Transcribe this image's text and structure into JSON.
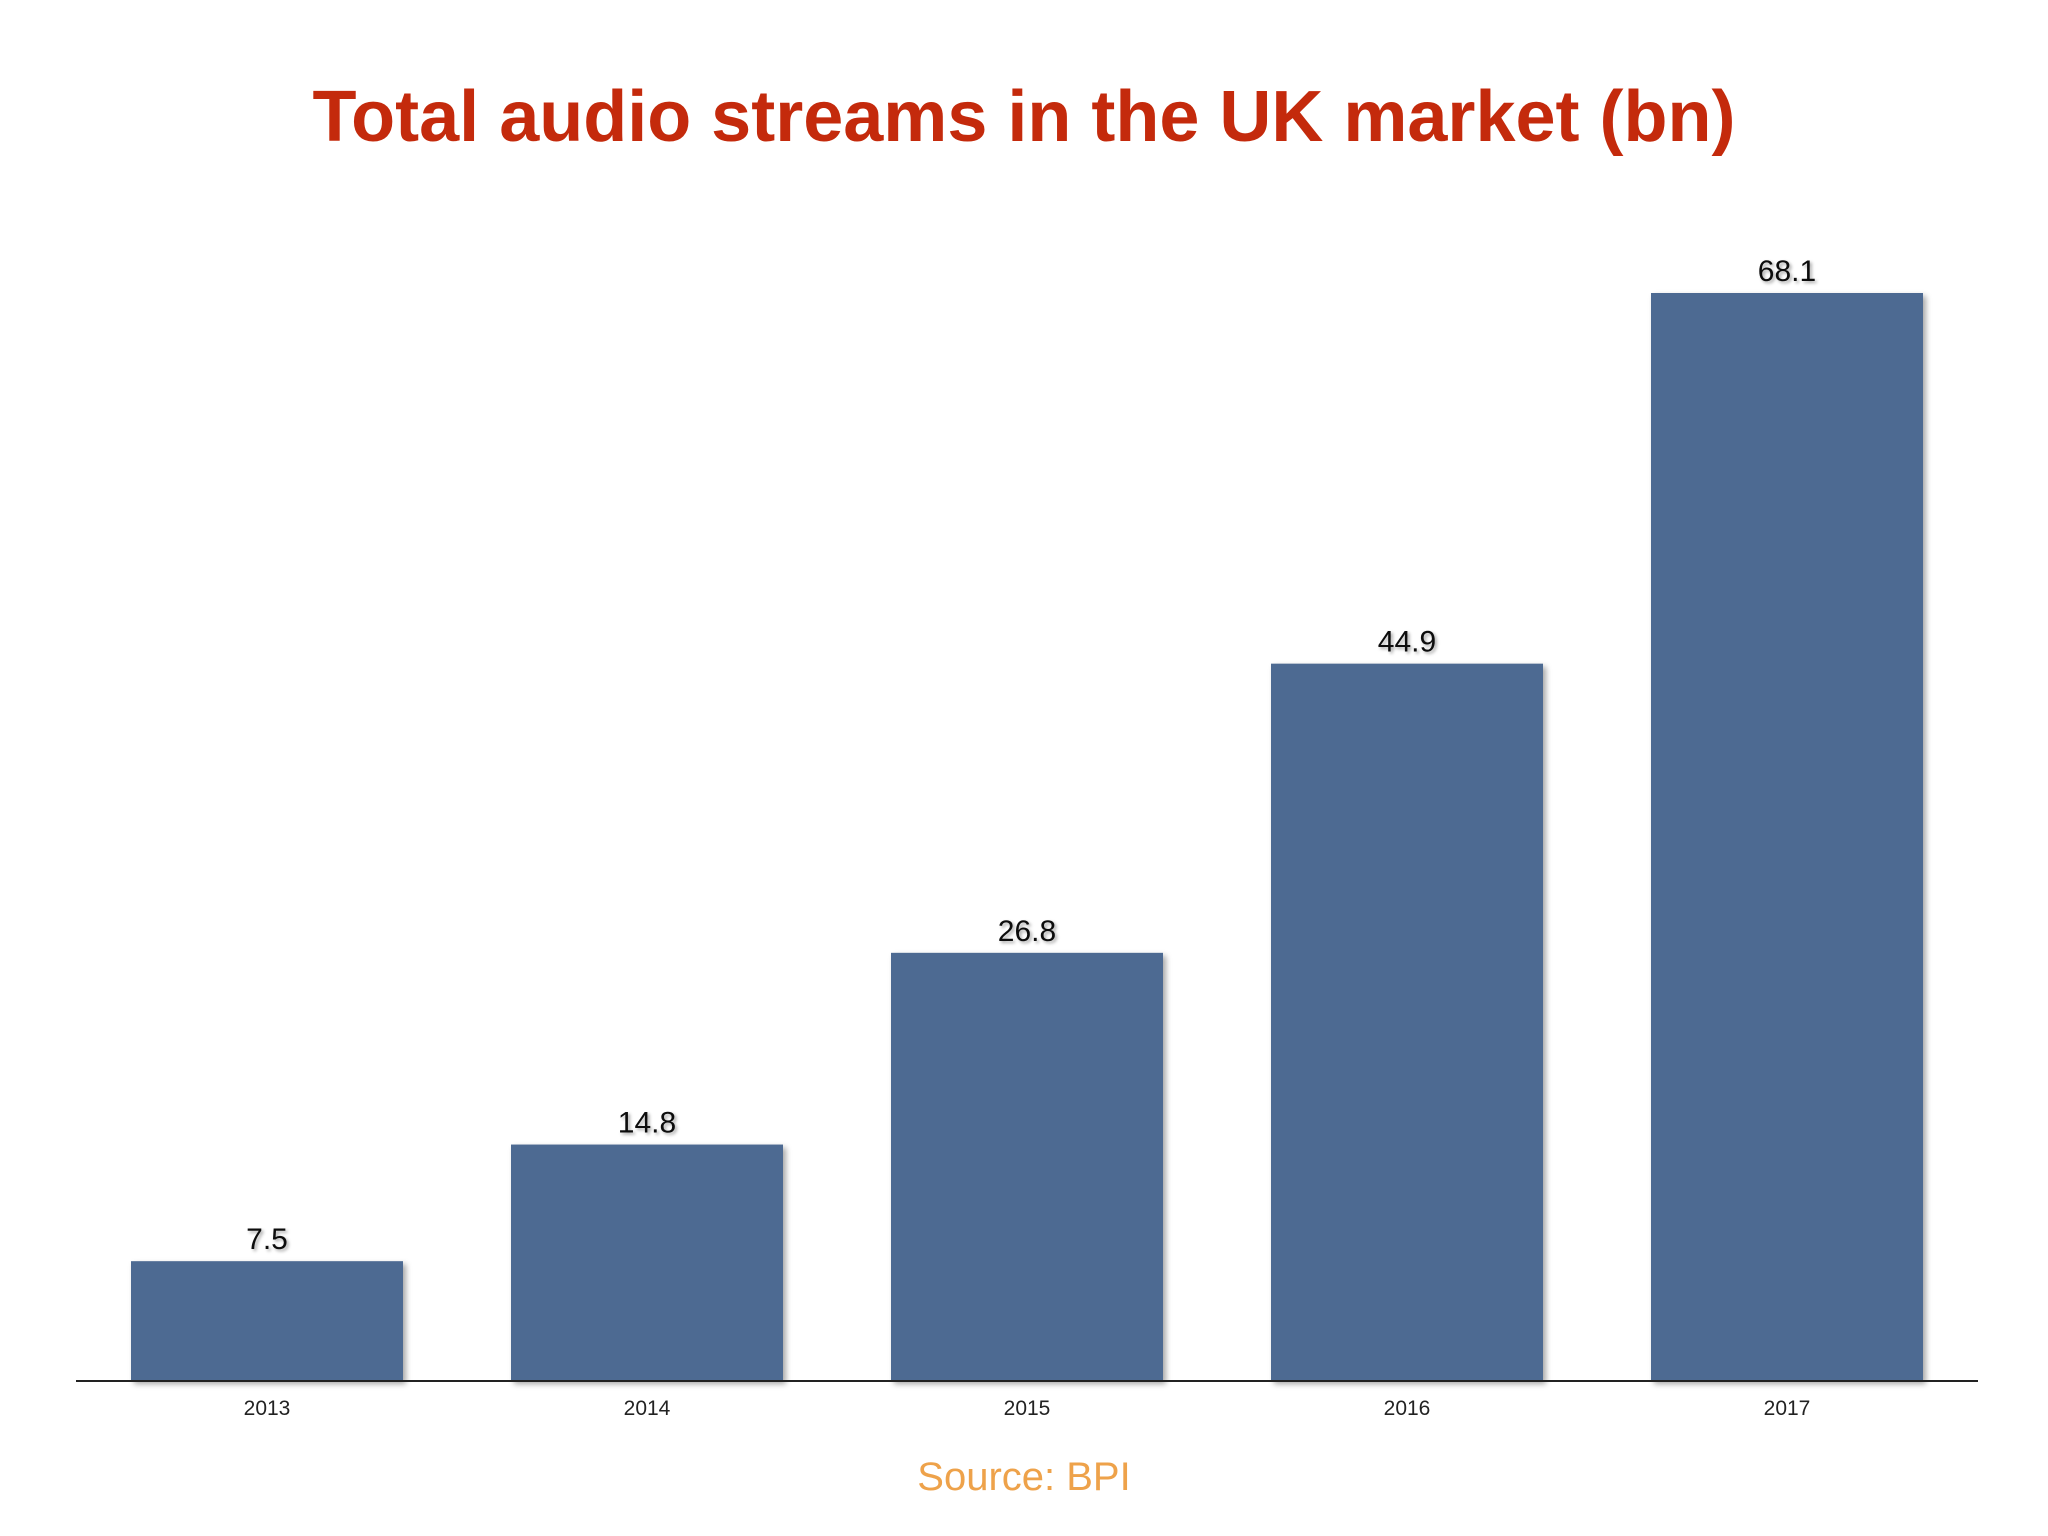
{
  "colors": {
    "title": "#c42a0c",
    "bar": "#4d6a92",
    "source": "#eea24a",
    "axis": "#222222"
  },
  "chart_data": {
    "type": "bar",
    "title": "Total audio streams in the UK market (bn)",
    "categories": [
      "2013",
      "2014",
      "2015",
      "2016",
      "2017"
    ],
    "values": [
      7.5,
      14.8,
      26.8,
      44.9,
      68.1
    ],
    "data_labels": [
      "7.5",
      "14.8",
      "26.8",
      "44.9",
      "68.1"
    ],
    "xlabel": "",
    "ylabel": "",
    "ylim": [
      0,
      68.1
    ],
    "grid": false,
    "legend": "none",
    "source": "Source: BPI"
  }
}
